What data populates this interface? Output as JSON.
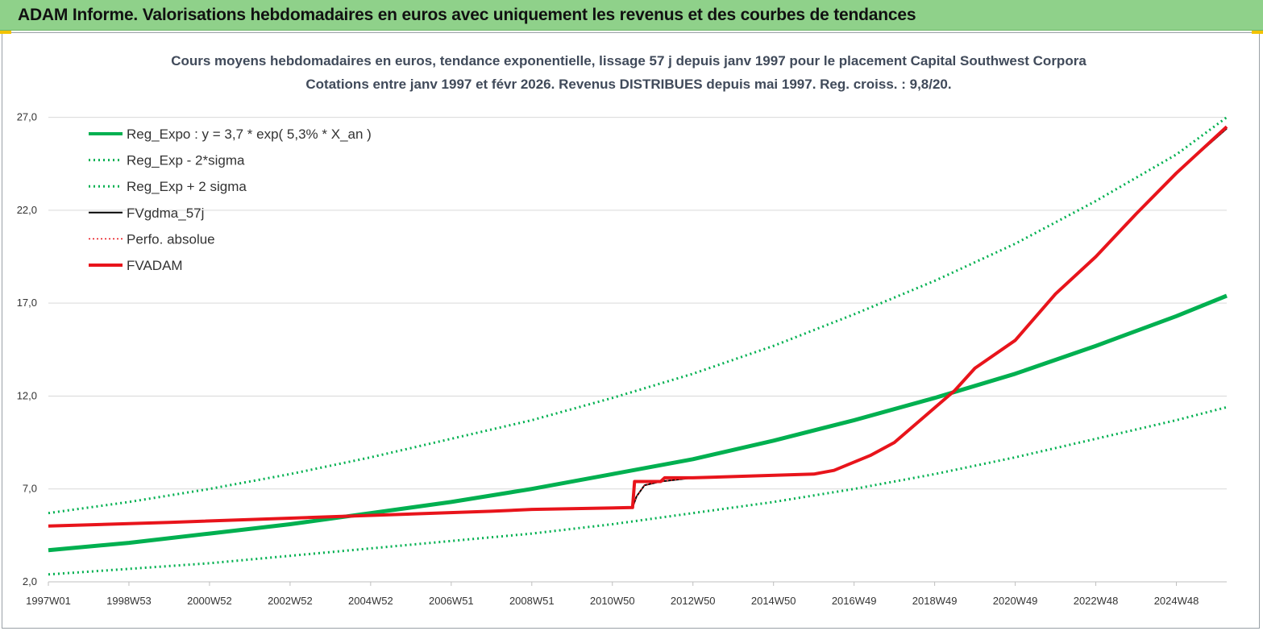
{
  "banner": {
    "title": "ADAM Informe. Valorisations hebdomadaires en euros avec uniquement les revenus et des courbes de tendances"
  },
  "colors": {
    "banner_bg": "#8fd18a",
    "reg_expo": "#00b050",
    "fvgdma": "#000000",
    "fvadam": "#e8141b",
    "perfo": "#e8141b"
  },
  "chart_data": {
    "type": "line",
    "title": "Cours moyens hebdomadaires en euros, tendance exponentielle, lissage 57 j depuis janv 1997  pour le placement Capital Southwest Corpora",
    "subtitle": "Cotations entre janv 1997  et févr  2026. Revenus DISTRIBUES  depuis mai  1997. Reg. croiss. : 9,8/20.",
    "xlabel": "",
    "ylabel": "",
    "x_range": [
      1997.0,
      2026.25
    ],
    "ylim": [
      2.0,
      29.5
    ],
    "y_ticks": [
      2.0,
      7.0,
      12.0,
      17.0,
      22.0,
      27.0
    ],
    "y_tick_labels": [
      "2,0",
      "7,0",
      "12,0",
      "17,0",
      "22,0",
      "27,0"
    ],
    "x_ticks": [
      1997.0,
      1999.0,
      2001.0,
      2003.0,
      2005.0,
      2007.0,
      2009.0,
      2011.0,
      2013.0,
      2015.0,
      2017.0,
      2019.0,
      2021.0,
      2023.0,
      2025.0
    ],
    "x_tick_labels": [
      "1997W01",
      "1998W53",
      "2000W52",
      "2002W52",
      "2004W52",
      "2006W51",
      "2008W51",
      "2010W50",
      "2012W50",
      "2014W50",
      "2016W49",
      "2018W49",
      "2020W49",
      "2022W48",
      "2024W48"
    ],
    "grid": "horizontal",
    "legend_position": "top-left",
    "legend": [
      {
        "label": "Reg_Expo : y = 3,7 * exp( 5,3% *  X_an )",
        "color": "#00b050",
        "style": "solid-thick"
      },
      {
        "label": "Reg_Exp - 2*sigma",
        "color": "#00b050",
        "style": "dotted"
      },
      {
        "label": "Reg_Exp + 2 sigma",
        "color": "#00b050",
        "style": "dotted"
      },
      {
        "label": "FVgdma_57j",
        "color": "#000000",
        "style": "solid"
      },
      {
        "label": "Perfo. absolue",
        "color": "#e8141b",
        "style": "dotted"
      },
      {
        "label": "FVADAM",
        "color": "#e8141b",
        "style": "solid-thick"
      }
    ],
    "series": [
      {
        "name": "Reg_Expo : y = 3,7 * exp( 5,3% *  X_an )",
        "x": [
          1997,
          1999,
          2001,
          2003,
          2005,
          2007,
          2009,
          2011,
          2013,
          2015,
          2017,
          2019,
          2021,
          2023,
          2025,
          2026.25
        ],
        "values": [
          3.7,
          4.1,
          4.6,
          5.1,
          5.7,
          6.3,
          7.0,
          7.8,
          8.6,
          9.6,
          10.7,
          11.9,
          13.2,
          14.7,
          16.3,
          17.4
        ]
      },
      {
        "name": "Reg_Exp - 2*sigma",
        "x": [
          1997,
          1999,
          2001,
          2003,
          2005,
          2007,
          2009,
          2011,
          2013,
          2015,
          2017,
          2019,
          2021,
          2023,
          2025,
          2026.25
        ],
        "values": [
          2.4,
          2.7,
          3.0,
          3.4,
          3.8,
          4.2,
          4.6,
          5.1,
          5.7,
          6.3,
          7.0,
          7.8,
          8.7,
          9.7,
          10.7,
          11.4
        ]
      },
      {
        "name": "Reg_Exp + 2 sigma",
        "x": [
          1997,
          1999,
          2001,
          2003,
          2005,
          2007,
          2009,
          2011,
          2013,
          2015,
          2017,
          2019,
          2021,
          2023,
          2025,
          2026.25
        ],
        "values": [
          5.7,
          6.3,
          7.0,
          7.8,
          8.7,
          9.7,
          10.7,
          11.9,
          13.2,
          14.7,
          16.4,
          18.2,
          20.2,
          22.5,
          25.0,
          27.0
        ]
      },
      {
        "name": "FVgdma_57j",
        "x": [
          1997,
          2000,
          2004,
          2008,
          2009,
          2011.5,
          2011.6,
          2011.8,
          2012.2,
          2013,
          2016,
          2016.5,
          2017.4,
          2018,
          2019.5,
          2020,
          2021,
          2022,
          2023,
          2024,
          2025,
          2026.25
        ],
        "values": [
          5.0,
          5.2,
          5.5,
          5.8,
          5.9,
          6.0,
          6.6,
          7.2,
          7.4,
          7.6,
          7.8,
          8.0,
          8.8,
          9.5,
          12.3,
          13.5,
          15.0,
          17.5,
          19.5,
          21.8,
          24.0,
          26.4
        ]
      },
      {
        "name": "Perfo. absolue",
        "x": [
          1997,
          2000,
          2004,
          2008,
          2009,
          2011.5,
          2011.6,
          2011.8,
          2012.2,
          2013,
          2016,
          2016.5,
          2017.4,
          2018,
          2019.5,
          2020,
          2021,
          2022,
          2023,
          2024,
          2025,
          2026.25
        ],
        "values": [
          5.0,
          5.2,
          5.5,
          5.8,
          5.9,
          6.0,
          6.6,
          7.2,
          7.4,
          7.6,
          7.8,
          8.0,
          8.8,
          9.5,
          12.3,
          13.5,
          15.0,
          17.5,
          19.5,
          21.8,
          24.0,
          26.4
        ]
      },
      {
        "name": "FVADAM",
        "x": [
          1997,
          2000,
          2004,
          2008,
          2009,
          2011.5,
          2011.55,
          2012.2,
          2012.3,
          2013,
          2016,
          2016.5,
          2017.4,
          2018,
          2019.5,
          2020,
          2021,
          2022,
          2023,
          2024,
          2025,
          2026.25
        ],
        "values": [
          5.0,
          5.2,
          5.5,
          5.8,
          5.9,
          6.0,
          7.4,
          7.4,
          7.6,
          7.6,
          7.8,
          8.0,
          8.8,
          9.5,
          12.3,
          13.5,
          15.0,
          17.5,
          19.5,
          21.8,
          24.0,
          26.5
        ]
      }
    ]
  }
}
